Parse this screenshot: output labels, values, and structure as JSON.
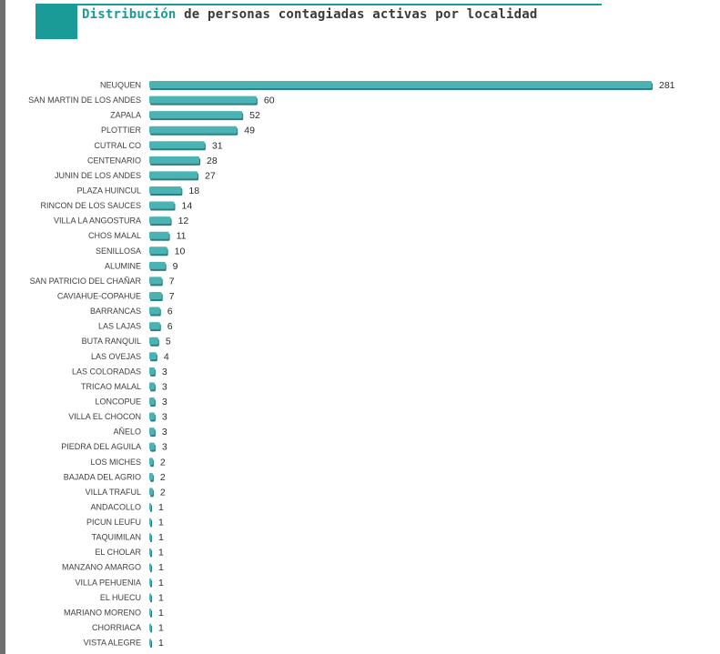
{
  "header": {
    "title_highlight": "Distribución",
    "title_rest": " de personas contagiadas activas por localidad"
  },
  "colors": {
    "bar": "#4bb3b3",
    "bar_shadow": "#2d7f80",
    "accent": "#1a9b98",
    "label": "#404040"
  },
  "chart_data": {
    "type": "bar",
    "orientation": "horizontal",
    "title": "Distribución de personas contagiadas activas por localidad",
    "xlabel": "",
    "ylabel": "",
    "xlim": [
      0,
      281
    ],
    "grid": false,
    "legend": "none",
    "data_labels": true,
    "categories": [
      "NEUQUEN",
      "SAN MARTIN DE LOS ANDES",
      "ZAPALA",
      "PLOTTIER",
      "CUTRAL CO",
      "CENTENARIO",
      "JUNIN DE LOS ANDES",
      "PLAZA HUINCUL",
      "RINCON DE LOS SAUCES",
      "VILLA LA ANGOSTURA",
      "CHOS MALAL",
      "SENILLOSA",
      "ALUMINE",
      "SAN PATRICIO DEL CHAÑAR",
      "CAVIAHUE-COPAHUE",
      "BARRANCAS",
      "LAS LAJAS",
      "BUTA RANQUIL",
      "LAS OVEJAS",
      "LAS COLORADAS",
      "TRICAO MALAL",
      "LONCOPUE",
      "VILLA EL CHOCON",
      "AÑELO",
      "PIEDRA DEL AGUILA",
      "LOS MICHES",
      "BAJADA DEL AGRIO",
      "VILLA TRAFUL",
      "ANDACOLLO",
      "PICUN LEUFU",
      "TAQUIMILAN",
      "EL CHOLAR",
      "MANZANO AMARGO",
      "VILLA PEHUENIA",
      "EL HUECU",
      "MARIANO MORENO",
      "CHORRIACA",
      "VISTA ALEGRE"
    ],
    "values": [
      281,
      60,
      52,
      49,
      31,
      28,
      27,
      18,
      14,
      12,
      11,
      10,
      9,
      7,
      7,
      6,
      6,
      5,
      4,
      3,
      3,
      3,
      3,
      3,
      3,
      2,
      2,
      2,
      1,
      1,
      1,
      1,
      1,
      1,
      1,
      1,
      1,
      1
    ]
  }
}
